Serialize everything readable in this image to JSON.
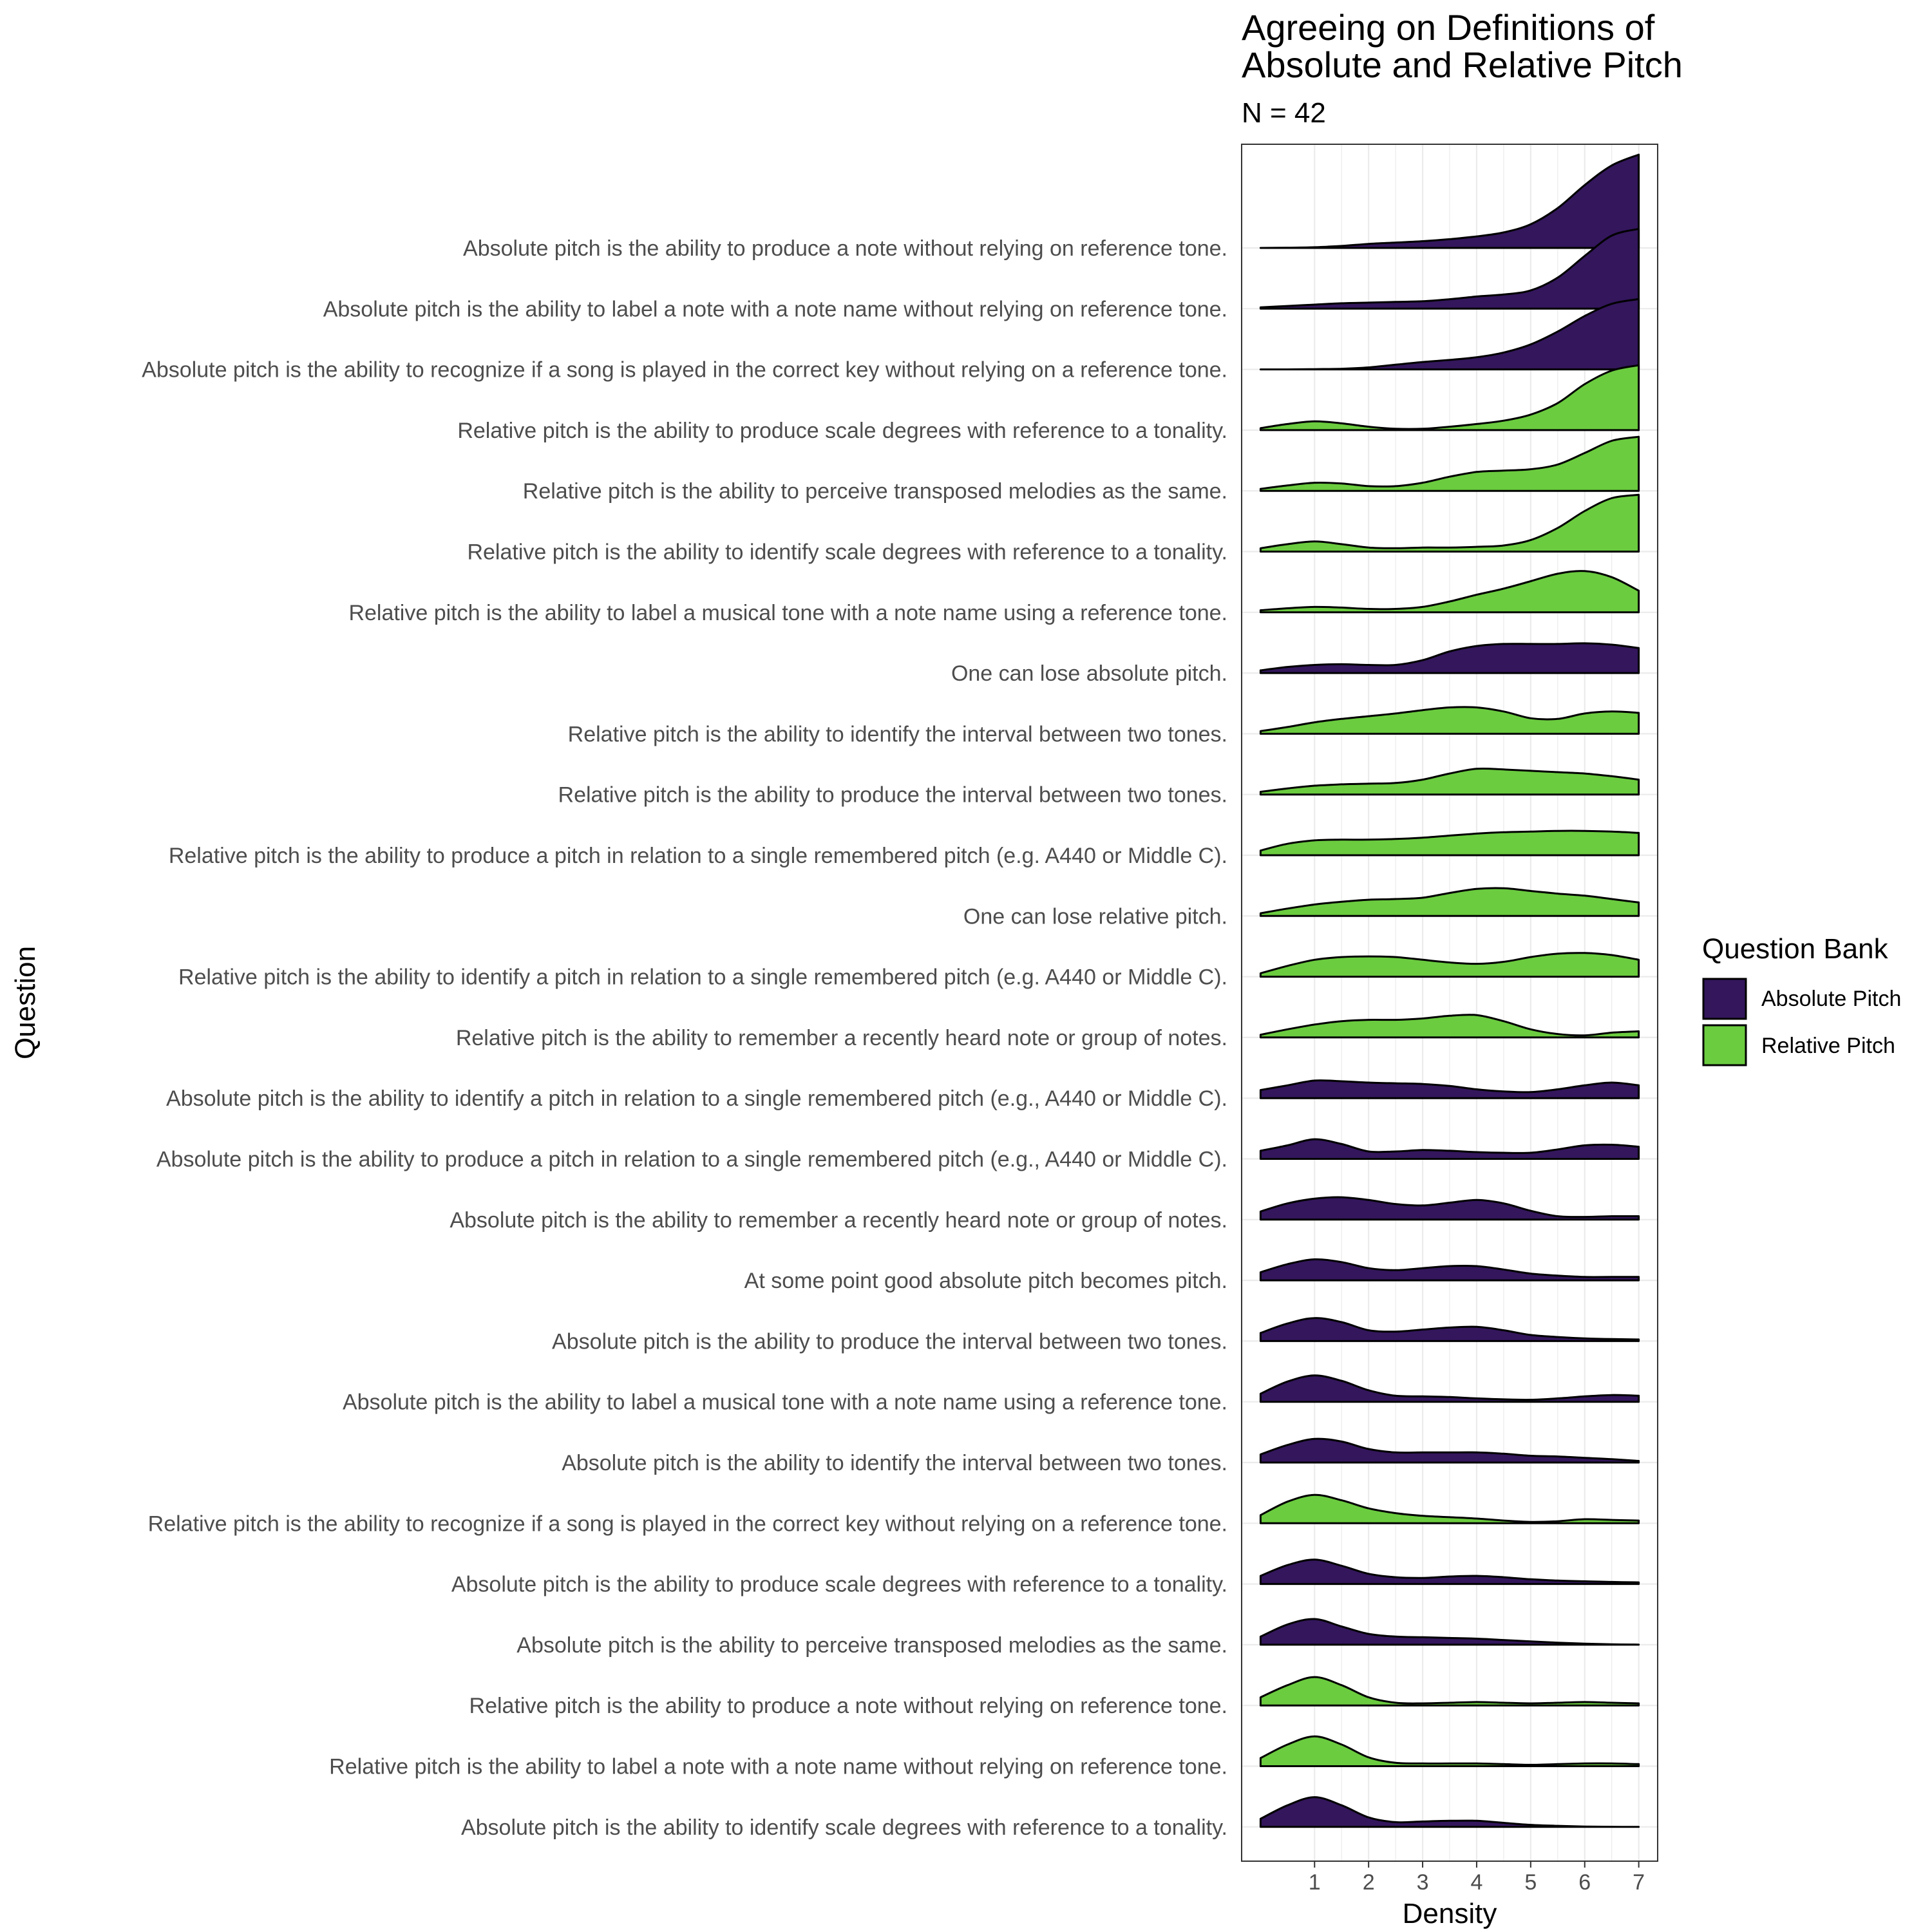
{
  "chart_data": {
    "type": "ridgeline",
    "title_lines": [
      "Agreeing on Definitions of",
      "Absolute and Relative Pitch"
    ],
    "subtitle": "N = 42",
    "xlabel": "Density",
    "ylabel": "Question",
    "xlim": [
      -0.35,
      7.35
    ],
    "x_ticks": [
      1,
      2,
      3,
      4,
      5,
      6,
      7
    ],
    "x_grid": [
      1,
      1.5,
      2,
      2.5,
      3,
      3.5,
      4,
      4.5,
      5,
      5.5,
      6,
      6.5,
      7
    ],
    "grid": true,
    "x_sample_points": [
      0,
      0.5,
      1,
      1.5,
      2,
      2.5,
      3,
      3.5,
      4,
      4.5,
      5,
      5.5,
      6,
      6.5,
      7
    ],
    "legend": {
      "title": "Question Bank",
      "placement": "right",
      "entries": [
        {
          "label": "Absolute Pitch",
          "color": "#33165c"
        },
        {
          "label": "Relative Pitch",
          "color": "#6bcc3f"
        }
      ]
    },
    "series": [
      {
        "label": "Absolute pitch is the ability to identify scale degrees with reference to a tonality.",
        "group": "Absolute Pitch",
        "height": [
          0.6,
          1.6,
          2.2,
          1.6,
          0.7,
          0.35,
          0.4,
          0.45,
          0.45,
          0.3,
          0.15,
          0.08,
          0.03,
          0.01,
          0.0
        ]
      },
      {
        "label": "Relative pitch is the ability to label a note with a note name without relying on reference tone.",
        "group": "Relative Pitch",
        "height": [
          0.6,
          1.6,
          2.2,
          1.6,
          0.65,
          0.25,
          0.2,
          0.2,
          0.2,
          0.15,
          0.1,
          0.15,
          0.2,
          0.2,
          0.15
        ]
      },
      {
        "label": "Relative pitch is the ability to produce a note without relying on reference tone.",
        "group": "Relative Pitch",
        "height": [
          0.6,
          1.5,
          2.1,
          1.5,
          0.6,
          0.2,
          0.15,
          0.2,
          0.25,
          0.2,
          0.15,
          0.2,
          0.25,
          0.2,
          0.15
        ]
      },
      {
        "label": "Absolute pitch is the ability to perceive transposed melodies as the same.",
        "group": "Absolute Pitch",
        "height": [
          0.6,
          1.5,
          1.9,
          1.35,
          0.8,
          0.6,
          0.55,
          0.5,
          0.45,
          0.35,
          0.25,
          0.15,
          0.08,
          0.03,
          0.01
        ]
      },
      {
        "label": "Absolute pitch is the ability to produce scale degrees with reference to a tonality.",
        "group": "Absolute Pitch",
        "height": [
          0.6,
          1.4,
          1.8,
          1.35,
          0.75,
          0.5,
          0.45,
          0.55,
          0.6,
          0.5,
          0.35,
          0.25,
          0.2,
          0.15,
          0.12
        ]
      },
      {
        "label": "Relative pitch is the ability to recognize if a song is played in the correct key without relying on a reference tone.",
        "group": "Relative Pitch",
        "height": [
          0.6,
          1.6,
          2.1,
          1.7,
          1.1,
          0.75,
          0.55,
          0.45,
          0.35,
          0.2,
          0.1,
          0.15,
          0.3,
          0.25,
          0.2
        ]
      },
      {
        "label": "Absolute pitch is the ability to identify the interval between two tones.",
        "group": "Absolute Pitch",
        "height": [
          0.6,
          1.3,
          1.75,
          1.55,
          1.0,
          0.75,
          0.75,
          0.75,
          0.75,
          0.65,
          0.5,
          0.45,
          0.35,
          0.25,
          0.12
        ]
      },
      {
        "label": "Absolute pitch is the ability to label a musical tone with a note name using a reference tone.",
        "group": "Absolute Pitch",
        "height": [
          0.6,
          1.5,
          1.95,
          1.55,
          0.85,
          0.45,
          0.4,
          0.35,
          0.25,
          0.18,
          0.15,
          0.25,
          0.4,
          0.5,
          0.45
        ]
      },
      {
        "label": "Absolute pitch is the ability to produce the interval between two tones.",
        "group": "Absolute Pitch",
        "height": [
          0.6,
          1.3,
          1.7,
          1.4,
          0.8,
          0.7,
          0.85,
          1.0,
          1.05,
          0.8,
          0.45,
          0.3,
          0.2,
          0.15,
          0.12
        ]
      },
      {
        "label": "At some point good absolute pitch becomes pitch.",
        "group": "Absolute Pitch",
        "height": [
          0.6,
          1.2,
          1.55,
          1.35,
          0.9,
          0.75,
          0.9,
          1.05,
          1.05,
          0.8,
          0.5,
          0.35,
          0.25,
          0.25,
          0.25
        ]
      },
      {
        "label": "Absolute pitch is the ability to remember a recently heard note or group of notes.",
        "group": "Absolute Pitch",
        "height": [
          0.6,
          1.2,
          1.55,
          1.65,
          1.45,
          1.15,
          1.05,
          1.25,
          1.45,
          1.2,
          0.65,
          0.25,
          0.2,
          0.25,
          0.25
        ]
      },
      {
        "label": "Absolute pitch is the ability to produce a pitch in relation to a single remembered pitch (e.g., A440 or Middle C).",
        "group": "Absolute Pitch",
        "height": [
          0.6,
          1.0,
          1.45,
          1.1,
          0.55,
          0.55,
          0.65,
          0.6,
          0.5,
          0.45,
          0.45,
          0.7,
          1.0,
          1.05,
          0.9
        ]
      },
      {
        "label": "Absolute pitch is the ability to identify a pitch in relation to a single remembered pitch (e.g., A440 or Middle C).",
        "group": "Absolute Pitch",
        "height": [
          0.6,
          0.95,
          1.3,
          1.25,
          1.15,
          1.1,
          1.05,
          0.9,
          0.65,
          0.5,
          0.45,
          0.65,
          0.95,
          1.15,
          0.95
        ]
      },
      {
        "label": "Relative pitch is the ability to remember a recently heard note or group of notes.",
        "group": "Relative Pitch",
        "height": [
          0.2,
          0.6,
          0.95,
          1.2,
          1.3,
          1.3,
          1.4,
          1.6,
          1.65,
          1.2,
          0.6,
          0.25,
          0.15,
          0.35,
          0.45
        ]
      },
      {
        "label": "Relative pitch is the ability to identify a pitch in relation to a single remembered pitch (e.g.  A440 or Middle C).",
        "group": "Relative Pitch",
        "height": [
          0.25,
          0.8,
          1.25,
          1.45,
          1.5,
          1.45,
          1.25,
          1.05,
          0.95,
          1.1,
          1.45,
          1.7,
          1.75,
          1.6,
          1.25
        ]
      },
      {
        "label": "One can lose relative pitch.",
        "group": "Relative Pitch",
        "height": [
          0.2,
          0.55,
          0.85,
          1.05,
          1.2,
          1.25,
          1.35,
          1.7,
          2.0,
          2.05,
          1.85,
          1.65,
          1.5,
          1.25,
          1.0
        ]
      },
      {
        "label": "Relative pitch is the ability to produce a pitch in relation to a single remembered pitch (e.g. A440 or Middle C).",
        "group": "Relative Pitch",
        "height": [
          0.35,
          0.85,
          1.1,
          1.15,
          1.15,
          1.2,
          1.3,
          1.45,
          1.6,
          1.7,
          1.75,
          1.8,
          1.8,
          1.75,
          1.65
        ]
      },
      {
        "label": "Relative pitch is the ability to produce the interval between two tones.",
        "group": "Relative Pitch",
        "height": [
          0.2,
          0.45,
          0.65,
          0.75,
          0.8,
          0.85,
          1.1,
          1.55,
          1.9,
          1.85,
          1.75,
          1.65,
          1.55,
          1.35,
          1.1
        ]
      },
      {
        "label": "Relative pitch is the ability to identify the interval between two tones.",
        "group": "Relative Pitch",
        "height": [
          0.2,
          0.5,
          0.85,
          1.1,
          1.3,
          1.5,
          1.75,
          1.95,
          1.95,
          1.65,
          1.15,
          1.1,
          1.5,
          1.65,
          1.55
        ]
      },
      {
        "label": "One can lose absolute pitch.",
        "group": "Absolute Pitch",
        "height": [
          0.2,
          0.45,
          0.6,
          0.65,
          0.6,
          0.6,
          0.95,
          1.6,
          2.0,
          2.15,
          2.15,
          2.15,
          2.2,
          2.1,
          1.85
        ]
      },
      {
        "label": "Relative pitch is the ability to label a musical tone with a note name using a reference tone.",
        "group": "Relative Pitch",
        "height": [
          0.15,
          0.3,
          0.4,
          0.35,
          0.25,
          0.25,
          0.4,
          0.8,
          1.3,
          1.75,
          2.3,
          2.85,
          3.05,
          2.6,
          1.6
        ]
      },
      {
        "label": "Relative pitch is the ability to identify scale degrees with reference to a tonality.",
        "group": "Relative Pitch",
        "height": [
          0.25,
          0.55,
          0.75,
          0.55,
          0.3,
          0.25,
          0.3,
          0.3,
          0.35,
          0.45,
          0.85,
          1.75,
          3.0,
          3.95,
          4.2
        ]
      },
      {
        "label": "Relative pitch is the ability to perceive transposed melodies as the same.",
        "group": "Relative Pitch",
        "height": [
          0.15,
          0.4,
          0.6,
          0.55,
          0.35,
          0.35,
          0.6,
          1.05,
          1.4,
          1.5,
          1.6,
          1.95,
          2.8,
          3.7,
          4.0
        ]
      },
      {
        "label": "Relative pitch is the ability to produce scale degrees with reference to a tonality.",
        "group": "Relative Pitch",
        "height": [
          0.15,
          0.45,
          0.65,
          0.5,
          0.25,
          0.1,
          0.1,
          0.25,
          0.45,
          0.7,
          1.15,
          2.0,
          3.4,
          4.4,
          4.8
        ]
      },
      {
        "label": "Absolute pitch is the ability to recognize if a song is played in the correct key without relying on a reference tone.",
        "group": "Absolute Pitch",
        "height": [
          0.0,
          0.0,
          0.02,
          0.05,
          0.15,
          0.35,
          0.55,
          0.7,
          0.9,
          1.25,
          1.85,
          2.8,
          3.95,
          4.85,
          5.2
        ]
      },
      {
        "label": "Absolute pitch is the ability to label a note with a note name without relying on reference tone.",
        "group": "Absolute Pitch",
        "height": [
          0.1,
          0.2,
          0.3,
          0.4,
          0.45,
          0.5,
          0.55,
          0.7,
          0.9,
          1.05,
          1.35,
          2.3,
          3.9,
          5.4,
          5.9
        ]
      },
      {
        "label": "Absolute pitch is the ability to produce a note without relying on reference tone.",
        "group": "Absolute Pitch",
        "height": [
          0.0,
          0.02,
          0.05,
          0.15,
          0.3,
          0.4,
          0.5,
          0.65,
          0.85,
          1.15,
          1.75,
          2.95,
          4.65,
          6.1,
          6.9
        ]
      }
    ]
  }
}
